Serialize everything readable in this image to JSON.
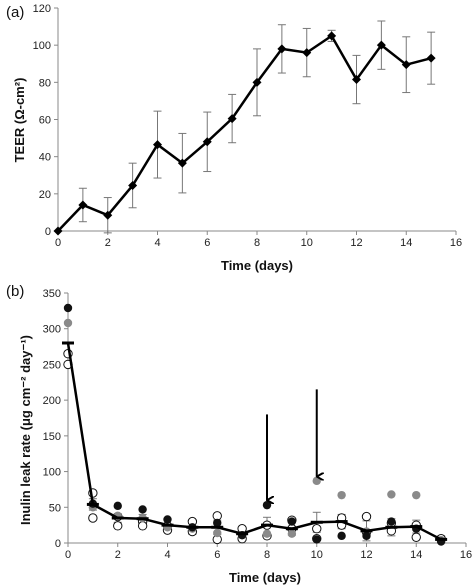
{
  "chart_data": [
    {
      "panel_label": "(a)",
      "type": "line",
      "xlabel": "Time (days)",
      "ylabel": "TEER (Ω-cm²)",
      "xlim": [
        0,
        16
      ],
      "ylim": [
        0,
        120
      ],
      "xticks": [
        0,
        2,
        4,
        6,
        8,
        10,
        12,
        14,
        16
      ],
      "yticks": [
        0,
        20,
        40,
        60,
        80,
        100,
        120
      ],
      "grid": false,
      "marker": "diamond",
      "line_color": "#000000",
      "series": [
        {
          "x": [
            0,
            1,
            2,
            3,
            4,
            5,
            6,
            7,
            8,
            9,
            10,
            11,
            12,
            13,
            14,
            15
          ],
          "y": [
            0,
            14,
            8.5,
            24.5,
            46.5,
            36.5,
            48,
            60.5,
            80,
            98,
            96,
            105,
            81.5,
            100,
            89.5,
            93
          ],
          "err": [
            0,
            9,
            9.5,
            12,
            18,
            16,
            16,
            13,
            18,
            13,
            13,
            3,
            13,
            13,
            15,
            14
          ]
        }
      ]
    },
    {
      "panel_label": "(b)",
      "type": "scatter",
      "xlabel": "Time (days)",
      "ylabel": "Inulin leak rate (μg cm⁻² day⁻¹)",
      "xlim": [
        0,
        16
      ],
      "ylim": [
        0,
        350
      ],
      "xticks": [
        0,
        2,
        4,
        6,
        8,
        10,
        12,
        14,
        16
      ],
      "yticks": [
        0,
        50,
        100,
        150,
        200,
        250,
        300,
        350
      ],
      "grid": false,
      "colors": {
        "black": "#111111",
        "gray": "#8a8a8a",
        "open": "#ffffff"
      },
      "mean_line": {
        "x": [
          0,
          1,
          2,
          3,
          4,
          5,
          6,
          7,
          8,
          9,
          10,
          11,
          12,
          13,
          14,
          15
        ],
        "y": [
          280,
          54,
          35,
          34,
          25,
          22,
          22,
          13,
          25,
          20,
          29,
          30,
          17,
          22,
          23,
          5
        ],
        "err": [
          0,
          8,
          6,
          6,
          7,
          10,
          10,
          8,
          11,
          9,
          14,
          10,
          14,
          12,
          9,
          5
        ]
      },
      "points": {
        "black": {
          "x": [
            0,
            1,
            2,
            3,
            4,
            5,
            6,
            7,
            8,
            9,
            10,
            11,
            12,
            13,
            14,
            15
          ],
          "y": [
            329,
            55,
            52,
            47,
            33,
            22,
            28,
            11,
            53,
            30,
            5,
            10,
            10,
            30,
            20,
            2
          ]
        },
        "gray": {
          "x": [
            0,
            1,
            2,
            3,
            4,
            5,
            6,
            7,
            8,
            9,
            10,
            11,
            12,
            13,
            14,
            15
          ],
          "y": [
            308,
            50,
            38,
            35,
            22,
            20,
            14,
            11,
            13,
            13,
            87,
            67,
            16,
            68,
            67,
            4
          ]
        },
        "open": {
          "x": [
            0,
            0,
            1,
            1,
            2,
            2,
            3,
            3,
            4,
            4,
            5,
            5,
            6,
            6,
            7,
            7,
            8,
            8,
            9,
            9,
            10,
            10,
            11,
            11,
            12,
            12,
            13,
            13,
            14,
            14,
            15
          ],
          "y": [
            265,
            250,
            70,
            35,
            37,
            24,
            30,
            24,
            24,
            18,
            30,
            16,
            38,
            5,
            20,
            6,
            25,
            10,
            32,
            20,
            20,
            6,
            35,
            25,
            37,
            15,
            28,
            17,
            25,
            8,
            6
          ]
        }
      },
      "annotations": [
        {
          "type": "arrow-down",
          "x": 8,
          "y_from": 180,
          "y_to": 60
        },
        {
          "type": "arrow-down",
          "x": 10,
          "y_from": 215,
          "y_to": 93
        }
      ]
    }
  ]
}
